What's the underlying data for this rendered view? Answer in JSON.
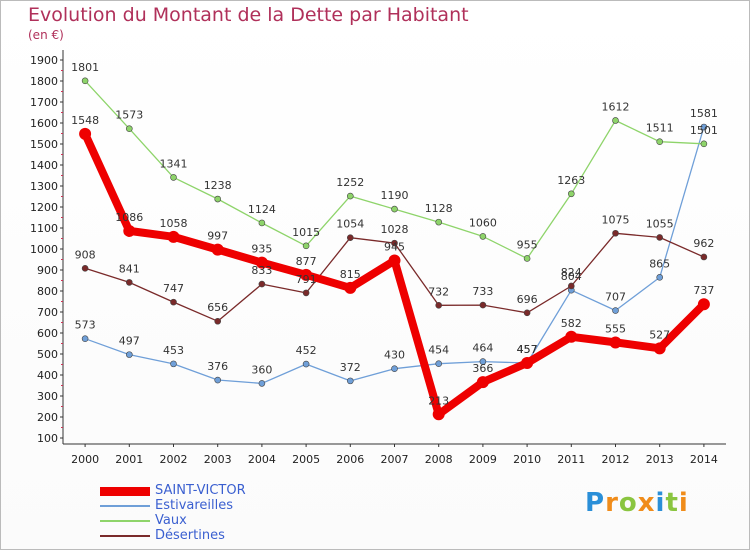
{
  "chart_data": {
    "type": "line",
    "title": "Evolution du Montant de la Dette par Habitant",
    "subtitle": "(en €)",
    "x": [
      "2000",
      "2001",
      "2002",
      "2003",
      "2004",
      "2005",
      "2006",
      "2007",
      "2008",
      "2009",
      "2010",
      "2011",
      "2012",
      "2013",
      "2014"
    ],
    "y_ticks": [
      "100",
      "200",
      "300",
      "400",
      "500",
      "600",
      "700",
      "800",
      "900",
      "1000",
      "1100",
      "1200",
      "1300",
      "1400",
      "1500",
      "1600",
      "1700",
      "1800",
      "1900"
    ],
    "ylim": [
      100,
      1900
    ],
    "series": [
      {
        "name": "SAINT-VICTOR",
        "color": "#ee0000",
        "values": [
          1548,
          1086,
          1058,
          997,
          935,
          877,
          815,
          945,
          213,
          366,
          457,
          582,
          555,
          527,
          737
        ]
      },
      {
        "name": "Estivareilles",
        "color": "#6f9fd8",
        "values": [
          573,
          497,
          453,
          376,
          360,
          452,
          372,
          430,
          454,
          464,
          457,
          804,
          707,
          865,
          1581
        ]
      },
      {
        "name": "Vaux",
        "color": "#8ed46a",
        "values": [
          1801,
          1573,
          1341,
          1238,
          1124,
          1015,
          1252,
          1190,
          1128,
          1060,
          955,
          1263,
          1612,
          1511,
          1501
        ]
      },
      {
        "name": "Désertines",
        "color": "#7a2a2a",
        "values": [
          908,
          841,
          747,
          656,
          833,
          791,
          1054,
          1028,
          732,
          733,
          696,
          824,
          1075,
          1055,
          962
        ]
      }
    ],
    "grid": false,
    "legend_position": "bottom-left"
  },
  "logo": {
    "letters": [
      "P",
      "r",
      "o",
      "x",
      "i",
      "t",
      "i"
    ],
    "colors": [
      "#2a8fd8",
      "#f08c1a",
      "#8ac540",
      "#f08c1a",
      "#2a8fd8",
      "#8ac540",
      "#f08c1a"
    ]
  }
}
